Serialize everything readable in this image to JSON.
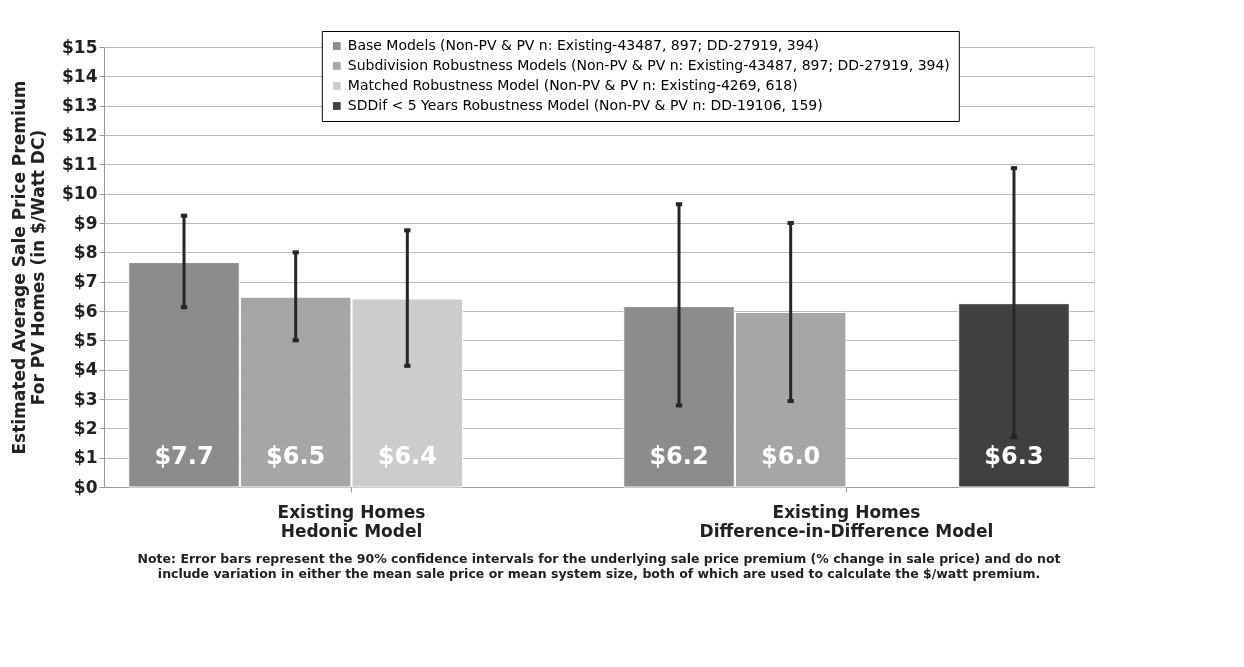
{
  "chart_data": {
    "type": "bar",
    "ylabel": "Estimated Average Sale Price Premium\nFor PV Homes (in $/Watt DC)",
    "categories": [
      "Existing Homes\nHedonic Model",
      "Existing Homes\nDifference-in-Difference Model"
    ],
    "series": [
      {
        "name": "Base Models (Non-PV & PV n: Existing-43487, 897; DD-27919, 394)",
        "color": "#8c8c8c",
        "values": [
          7.65,
          6.15
        ],
        "errors": [
          [
            6.13,
            9.25
          ],
          [
            2.78,
            9.64
          ]
        ],
        "value_labels": [
          "$7.7",
          "$6.2"
        ]
      },
      {
        "name": "Subdivision Robustness Models (Non-PV & PV n: Existing-43487, 897; DD-27919, 394)",
        "color": "#a6a6a6",
        "values": [
          6.47,
          5.95
        ],
        "errors": [
          [
            5.0,
            8.0
          ],
          [
            2.93,
            9.0
          ]
        ],
        "value_labels": [
          "$6.5",
          "$6.0"
        ]
      },
      {
        "name": "Matched Robustness Model (Non-PV & PV n: Existing-4269, 618)",
        "color": "#cccccc",
        "values": [
          6.41,
          null
        ],
        "errors": [
          [
            4.13,
            8.75
          ],
          null
        ],
        "value_labels": [
          "$6.4",
          null
        ]
      },
      {
        "name": "SDDif < 5 Years Robustness Model (Non-PV & PV n: DD-19106, 159)",
        "color": "#404040",
        "values": [
          null,
          6.25
        ],
        "errors": [
          null,
          [
            1.7,
            10.87
          ]
        ],
        "value_labels": [
          null,
          "$6.3"
        ]
      }
    ],
    "ylim": [
      0,
      15
    ],
    "yticks": [
      {
        "value": 0,
        "label": "$0"
      },
      {
        "value": 1,
        "label": "$1"
      },
      {
        "value": 2,
        "label": "$2"
      },
      {
        "value": 3,
        "label": "$3"
      },
      {
        "value": 4,
        "label": "$4"
      },
      {
        "value": 5,
        "label": "$5"
      },
      {
        "value": 6,
        "label": "$6"
      },
      {
        "value": 7,
        "label": "$7"
      },
      {
        "value": 8,
        "label": "$8"
      },
      {
        "value": 9,
        "label": "$9"
      },
      {
        "value": 10,
        "label": "$10"
      },
      {
        "value": 11,
        "label": "$11"
      },
      {
        "value": 12,
        "label": "$12"
      },
      {
        "value": 13,
        "label": "$13"
      },
      {
        "value": 14,
        "label": "$14"
      },
      {
        "value": 15,
        "label": "$15"
      }
    ],
    "grid": "y",
    "legend": "top",
    "annotations": [
      "Note: Error bars represent the 90% confidence intervals for the underlying sale price premium (% change in sale price) and do not include variation in either the mean sale price or mean system size, both of which are used to calculate the $/watt premium."
    ]
  }
}
